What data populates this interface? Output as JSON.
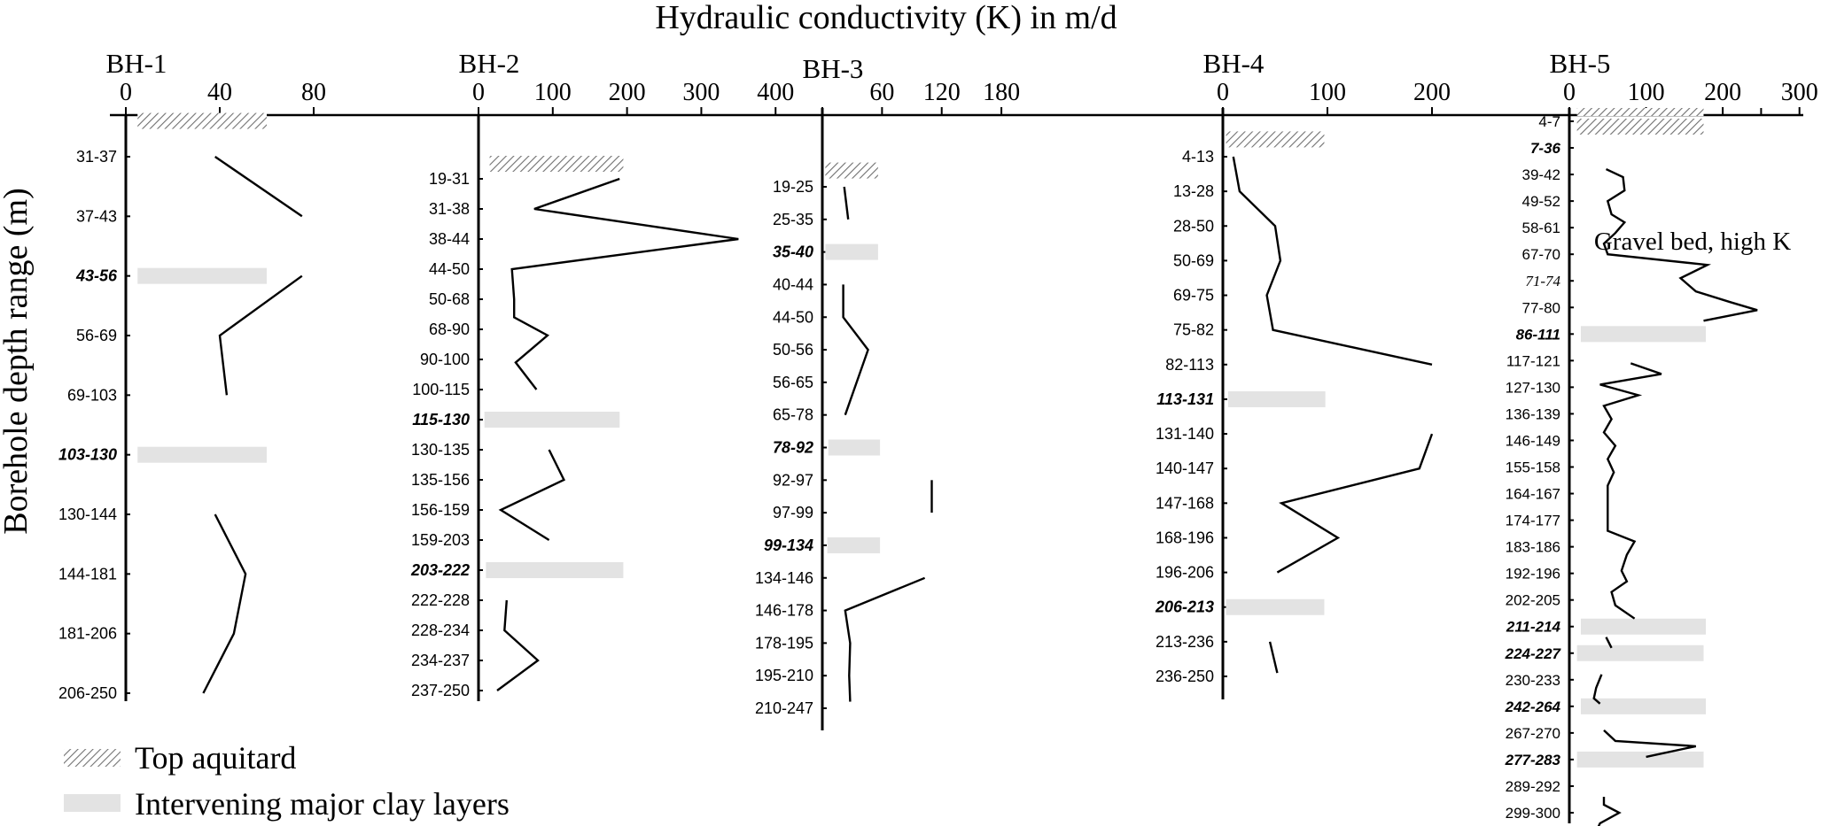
{
  "figure": {
    "x_title": "Hydraulic conductivity (K) in m/d",
    "y_title": "Borehole depth range (m)",
    "legend": [
      {
        "key": "top-aquitard",
        "label": "Top aquitard",
        "pattern": "hatch"
      },
      {
        "key": "clay",
        "label": "Intervening major clay layers",
        "pattern": "solid"
      }
    ],
    "annotation": "Gravel bed, high K",
    "colors": {
      "line": "#000000",
      "clay": "#e3e3e3",
      "hatch": "#808080"
    }
  },
  "chart_data": [
    {
      "type": "line",
      "title": "BH-1",
      "xlabel": "Hydraulic conductivity (K) in m/d",
      "ylabel": "Borehole depth range (m)",
      "xlim": [
        0,
        100
      ],
      "ticks": [
        0,
        40,
        80
      ],
      "labels": [
        {
          "t": "31-37"
        },
        {
          "t": "37-43"
        },
        {
          "t": "43-56",
          "b": true
        },
        {
          "t": "56-69"
        },
        {
          "t": "69-103"
        },
        {
          "t": "103-130",
          "b": true
        },
        {
          "t": "130-144"
        },
        {
          "t": "144-181"
        },
        {
          "t": "181-206"
        },
        {
          "t": "206-250"
        }
      ],
      "segments": [
        [
          {
            "k": 38,
            "i": 0
          },
          {
            "k": 75,
            "i": 1
          }
        ],
        [
          {
            "k": 75,
            "i": 2
          },
          {
            "k": 40,
            "i": 3
          },
          {
            "k": 43,
            "i": 4
          }
        ],
        [
          {
            "k": 38,
            "i": 6
          },
          {
            "k": 51,
            "i": 7
          },
          {
            "k": 46,
            "i": 8
          },
          {
            "k": 33,
            "i": 9
          }
        ]
      ],
      "aquitard": {
        "i": -0.6,
        "k": [
          5,
          60
        ]
      },
      "clays": [
        {
          "i": 2,
          "k": [
            5,
            60
          ]
        },
        {
          "i": 5,
          "k": [
            5,
            60
          ]
        }
      ]
    },
    {
      "type": "line",
      "title": "BH-2",
      "xlabel": "Hydraulic conductivity (K) in m/d",
      "ylabel": "Borehole depth range (m)",
      "xlim": [
        0,
        420
      ],
      "ticks": [
        0,
        100,
        200,
        300,
        400
      ],
      "labels": [
        {
          "t": "19-31"
        },
        {
          "t": "31-38"
        },
        {
          "t": "38-44"
        },
        {
          "t": "44-50"
        },
        {
          "t": "50-68"
        },
        {
          "t": "68-90"
        },
        {
          "t": "90-100"
        },
        {
          "t": "100-115"
        },
        {
          "t": "115-130",
          "b": true
        },
        {
          "t": "130-135"
        },
        {
          "t": "135-156"
        },
        {
          "t": "156-159"
        },
        {
          "t": "159-203"
        },
        {
          "t": "203-222",
          "b": true
        },
        {
          "t": "222-228"
        },
        {
          "t": "228-234"
        },
        {
          "t": "234-237"
        },
        {
          "t": "237-250"
        }
      ],
      "segments": [
        [
          {
            "k": 190,
            "i": 0
          },
          {
            "k": 75,
            "i": 1
          },
          {
            "k": 350,
            "i": 2
          },
          {
            "k": 45,
            "i": 3
          },
          {
            "k": 48,
            "i": 4
          },
          {
            "k": 48,
            "i": 4.6
          },
          {
            "k": 93,
            "i": 5.2
          },
          {
            "k": 50,
            "i": 6.1
          },
          {
            "k": 78,
            "i": 7
          }
        ],
        [
          {
            "k": 95,
            "i": 9
          },
          {
            "k": 115,
            "i": 10
          },
          {
            "k": 30,
            "i": 11
          },
          {
            "k": 95,
            "i": 12
          }
        ],
        [
          {
            "k": 38,
            "i": 14
          },
          {
            "k": 35,
            "i": 15
          },
          {
            "k": 80,
            "i": 16
          },
          {
            "k": 25,
            "i": 17
          }
        ]
      ],
      "aquitard": {
        "i": -0.5,
        "k": [
          15,
          195
        ]
      },
      "clays": [
        {
          "i": 8,
          "k": [
            8,
            190
          ]
        },
        {
          "i": 13,
          "k": [
            10,
            195
          ]
        }
      ]
    },
    {
      "type": "line",
      "title": "BH-3",
      "xlabel": "Hydraulic conductivity (K) in m/d",
      "ylabel": "Borehole depth range (m)",
      "xlim": [
        0,
        220
      ],
      "ticks": [
        0,
        60,
        120,
        180
      ],
      "tick_labels": [
        "",
        "60",
        "120",
        "180"
      ],
      "labels": [
        {
          "t": "19-25"
        },
        {
          "t": "25-35"
        },
        {
          "t": "35-40",
          "b": true
        },
        {
          "t": "40-44"
        },
        {
          "t": "44-50"
        },
        {
          "t": "50-56"
        },
        {
          "t": "56-65"
        },
        {
          "t": "65-78"
        },
        {
          "t": "78-92",
          "b": true
        },
        {
          "t": "92-97"
        },
        {
          "t": "97-99"
        },
        {
          "t": "99-134",
          "b": true
        },
        {
          "t": "134-146"
        },
        {
          "t": "146-178"
        },
        {
          "t": "178-195"
        },
        {
          "t": "195-210"
        },
        {
          "t": "210-247"
        }
      ],
      "segments": [
        [
          {
            "k": 22,
            "i": 0
          },
          {
            "k": 26,
            "i": 1
          }
        ],
        [
          {
            "k": 21,
            "i": 3
          },
          {
            "k": 21,
            "i": 4
          },
          {
            "k": 46,
            "i": 5
          },
          {
            "k": 23,
            "i": 7
          }
        ],
        [
          {
            "k": 110,
            "i": 9
          },
          {
            "k": 110,
            "i": 10
          }
        ],
        [
          {
            "k": 103,
            "i": 12
          },
          {
            "k": 23,
            "i": 13
          },
          {
            "k": 28,
            "i": 14
          },
          {
            "k": 27,
            "i": 15
          },
          {
            "k": 28,
            "i": 15.8
          }
        ]
      ],
      "aquitard": {
        "i": -0.5,
        "k": [
          3,
          56
        ]
      },
      "clays": [
        {
          "i": 2,
          "k": [
            3,
            56
          ]
        },
        {
          "i": 8,
          "k": [
            6,
            58
          ]
        },
        {
          "i": 11,
          "k": [
            5,
            58
          ]
        }
      ]
    },
    {
      "type": "line",
      "title": "BH-4",
      "xlabel": "Hydraulic conductivity (K) in m/d",
      "ylabel": "Borehole depth range (m)",
      "xlim": [
        0,
        250
      ],
      "ticks": [
        0,
        100,
        200
      ],
      "labels": [
        {
          "t": "4-13"
        },
        {
          "t": "13-28"
        },
        {
          "t": "28-50"
        },
        {
          "t": "50-69"
        },
        {
          "t": "69-75"
        },
        {
          "t": "75-82"
        },
        {
          "t": "82-113"
        },
        {
          "t": "113-131",
          "b": true
        },
        {
          "t": "131-140"
        },
        {
          "t": "140-147"
        },
        {
          "t": "147-168"
        },
        {
          "t": "168-196"
        },
        {
          "t": "196-206"
        },
        {
          "t": "206-213",
          "b": true
        },
        {
          "t": "213-236"
        },
        {
          "t": "236-250"
        }
      ],
      "segments": [
        [
          {
            "k": 10,
            "i": 0
          },
          {
            "k": 16,
            "i": 1
          },
          {
            "k": 50,
            "i": 2
          },
          {
            "k": 55,
            "i": 3
          },
          {
            "k": 42,
            "i": 4
          },
          {
            "k": 48,
            "i": 5
          },
          {
            "k": 200,
            "i": 6
          }
        ],
        [
          {
            "k": 200,
            "i": 8
          },
          {
            "k": 188,
            "i": 9
          },
          {
            "k": 56,
            "i": 10
          },
          {
            "k": 110,
            "i": 11
          },
          {
            "k": 52,
            "i": 12
          }
        ],
        [
          {
            "k": 45,
            "i": 14
          },
          {
            "k": 52,
            "i": 14.9
          }
        ]
      ],
      "aquitard": {
        "i": -0.5,
        "k": [
          3,
          97
        ]
      },
      "clays": [
        {
          "i": 7,
          "k": [
            5,
            98
          ]
        },
        {
          "i": 13,
          "k": [
            3,
            97
          ]
        }
      ]
    },
    {
      "type": "line",
      "title": "BH-5",
      "xlabel": "Hydraulic conductivity (K) in m/d",
      "ylabel": "Borehole depth range (m)",
      "xlim": [
        0,
        320
      ],
      "ticks": [
        0,
        100,
        200,
        300
      ],
      "tick_labels": [
        "0",
        "100",
        "200",
        "300"
      ],
      "minor_ticks": [
        50,
        150,
        250
      ],
      "labels": [
        {
          "t": "4-7"
        },
        {
          "t": "7-36",
          "b": true
        },
        {
          "t": "39-42"
        },
        {
          "t": "49-52"
        },
        {
          "t": "58-61"
        },
        {
          "t": "67-70"
        },
        {
          "t": "71-74",
          "it": true
        },
        {
          "t": "77-80"
        },
        {
          "t": "86-111",
          "b": true
        },
        {
          "t": "117-121"
        },
        {
          "t": "127-130"
        },
        {
          "t": "136-139"
        },
        {
          "t": "146-149"
        },
        {
          "t": "155-158"
        },
        {
          "t": "164-167"
        },
        {
          "t": "174-177"
        },
        {
          "t": "183-186"
        },
        {
          "t": "192-196"
        },
        {
          "t": "202-205"
        },
        {
          "t": "211-214",
          "b": true
        },
        {
          "t": "224-227",
          "b": true
        },
        {
          "t": "230-233"
        },
        {
          "t": "242-264",
          "b": true
        },
        {
          "t": "267-270"
        },
        {
          "t": "277-283",
          "b": true
        },
        {
          "t": "289-292"
        },
        {
          "t": "299-300"
        }
      ],
      "segments": [
        [
          {
            "k": 48,
            "i": 1.8
          },
          {
            "k": 70,
            "i": 2.1
          },
          {
            "k": 72,
            "i": 2.6
          },
          {
            "k": 50,
            "i": 3
          },
          {
            "k": 55,
            "i": 3.5
          },
          {
            "k": 72,
            "i": 3.8
          },
          {
            "k": 60,
            "i": 4.2
          },
          {
            "k": 45,
            "i": 4.6
          },
          {
            "k": 50,
            "i": 5
          },
          {
            "k": 180,
            "i": 5.4
          },
          {
            "k": 145,
            "i": 5.9
          },
          {
            "k": 165,
            "i": 6.4
          },
          {
            "k": 210,
            "i": 6.8
          },
          {
            "k": 245,
            "i": 7.1
          },
          {
            "k": 175,
            "i": 7.5
          }
        ],
        [
          {
            "k": 80,
            "i": 9.1
          },
          {
            "k": 120,
            "i": 9.5
          },
          {
            "k": 40,
            "i": 9.9
          },
          {
            "k": 90,
            "i": 10.3
          },
          {
            "k": 45,
            "i": 10.7
          },
          {
            "k": 55,
            "i": 11.2
          },
          {
            "k": 45,
            "i": 11.7
          },
          {
            "k": 60,
            "i": 12.2
          },
          {
            "k": 50,
            "i": 12.7
          },
          {
            "k": 58,
            "i": 13.2
          },
          {
            "k": 50,
            "i": 13.7
          },
          {
            "k": 50,
            "i": 14.6
          },
          {
            "k": 50,
            "i": 15.4
          },
          {
            "k": 85,
            "i": 15.8
          },
          {
            "k": 75,
            "i": 16.3
          },
          {
            "k": 68,
            "i": 16.9
          },
          {
            "k": 75,
            "i": 17.3
          },
          {
            "k": 55,
            "i": 17.7
          },
          {
            "k": 60,
            "i": 18.2
          },
          {
            "k": 85,
            "i": 18.7
          }
        ],
        [
          {
            "k": 48,
            "i": 19.4
          },
          {
            "k": 55,
            "i": 19.8
          }
        ],
        [
          {
            "k": 42,
            "i": 20.8
          },
          {
            "k": 35,
            "i": 21.3
          },
          {
            "k": 32,
            "i": 21.7
          },
          {
            "k": 40,
            "i": 21.9
          }
        ],
        [
          {
            "k": 45,
            "i": 22.9
          },
          {
            "k": 60,
            "i": 23.3
          },
          {
            "k": 165,
            "i": 23.5
          },
          {
            "k": 100,
            "i": 23.9
          }
        ],
        [
          {
            "k": 45,
            "i": 25.4
          },
          {
            "k": 45,
            "i": 25.7
          },
          {
            "k": 65,
            "i": 26
          },
          {
            "k": 40,
            "i": 26.4
          },
          {
            "k": 35,
            "i": 26.7
          }
        ]
      ],
      "aquitard": {
        "i": 0.2,
        "k": [
          10,
          175
        ]
      },
      "aquitard_hatch_only": [
        {
          "i": -0.35,
          "k": [
            10,
            175
          ],
          "h": 9
        }
      ],
      "clays": [
        {
          "i": 8,
          "k": [
            15,
            178
          ]
        },
        {
          "i": 19,
          "k": [
            15,
            178
          ]
        },
        {
          "i": 20,
          "k": [
            10,
            175
          ]
        },
        {
          "i": 22,
          "k": [
            15,
            178
          ]
        },
        {
          "i": 24,
          "k": [
            10,
            175
          ]
        }
      ]
    }
  ]
}
